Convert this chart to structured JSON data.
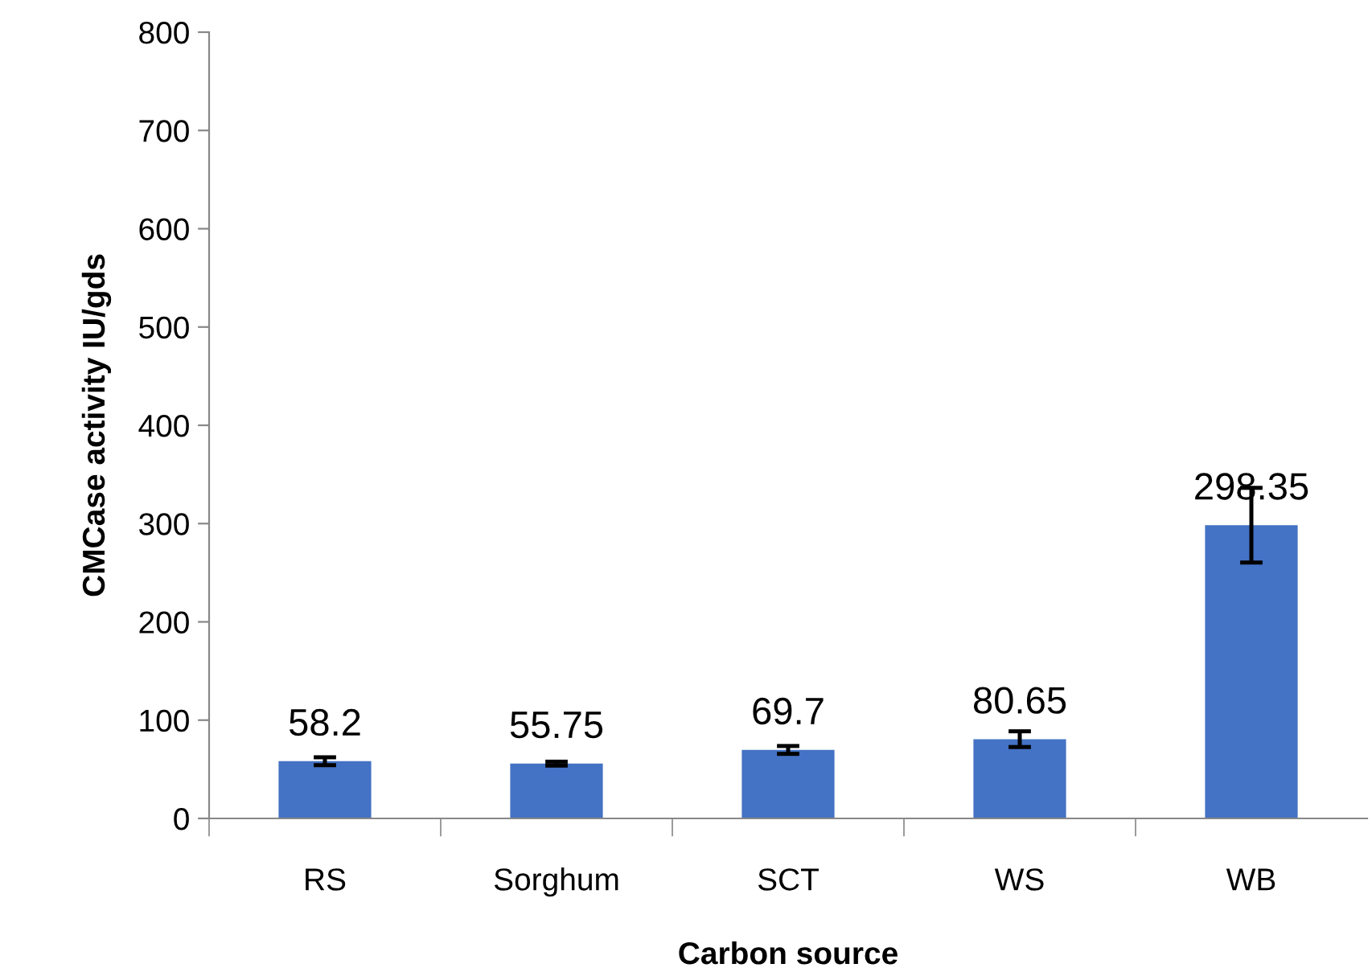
{
  "chart_data": {
    "type": "bar",
    "xlabel": "Carbon source",
    "ylabel": "CMCase activity IU/gds",
    "categories": [
      "RS",
      "Sorghum",
      "SCT",
      "WS",
      "WB"
    ],
    "values": [
      58.2,
      55.75,
      69.7,
      80.65,
      298.35
    ],
    "errors": [
      4,
      2,
      4,
      8,
      38
    ],
    "color": "#4472c4",
    "ylim": [
      0,
      800
    ],
    "yticks": [
      0,
      100,
      200,
      300,
      400,
      500,
      600,
      700,
      800
    ],
    "data_labels": true,
    "grid": false,
    "legend": false
  }
}
